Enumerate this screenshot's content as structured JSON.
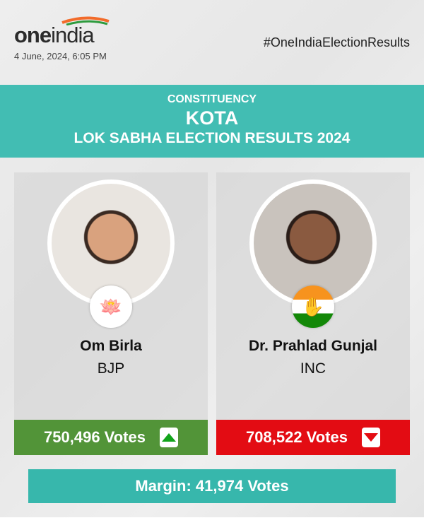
{
  "header": {
    "logo_bold": "one",
    "logo_light": "india",
    "date": "4 June, 2024, 6:05 PM",
    "hashtag": "#OneIndiaElectionResults"
  },
  "banner": {
    "label": "CONSTITUENCY",
    "constituency": "KOTA",
    "subtitle": "LOK SABHA ELECTION RESULTS 2024"
  },
  "candidates": [
    {
      "name": "Om Birla",
      "party": "BJP",
      "votes": "750,496 Votes",
      "trend": "up",
      "symbol": "lotus-icon",
      "color": "#529438"
    },
    {
      "name": "Dr. Prahlad Gunjal",
      "party": "INC",
      "votes": "708,522 Votes",
      "trend": "down",
      "symbol": "hand-icon",
      "color": "#e30c13"
    }
  ],
  "margin": "Margin: 41,974 Votes",
  "colors": {
    "banner": "#42bdb3",
    "margin": "#37b7ac"
  }
}
